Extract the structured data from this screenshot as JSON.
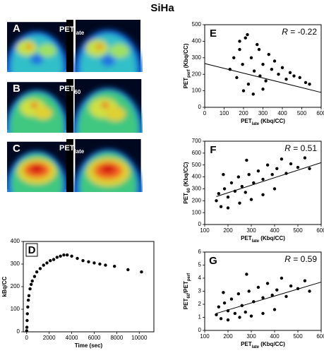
{
  "title": "SiHa",
  "image_panels": [
    {
      "letter": "A",
      "label": [
        {
          "text": "PET"
        },
        {
          "sub": "late"
        }
      ]
    },
    {
      "letter": "B",
      "label": [
        {
          "text": "PET"
        },
        {
          "sub": "60"
        }
      ]
    },
    {
      "letter": "C",
      "label": [
        {
          "text": "PET"
        },
        {
          "sub": "late"
        }
      ]
    }
  ],
  "chart_data": [
    {
      "type": "scatter",
      "panel": "D",
      "x_label": "Time (sec)",
      "y_label": "kBq/CC",
      "x": [
        0,
        20,
        40,
        60,
        100,
        150,
        200,
        300,
        400,
        500,
        700,
        900,
        1200,
        1500,
        1800,
        2100,
        2400,
        2700,
        3000,
        3300,
        3600,
        4000,
        4500,
        5000,
        5500,
        6000,
        6500,
        7000,
        7800,
        9000,
        10200
      ],
      "values": [
        5,
        20,
        50,
        80,
        110,
        140,
        160,
        190,
        210,
        225,
        245,
        265,
        280,
        295,
        305,
        315,
        320,
        330,
        335,
        340,
        340,
        335,
        325,
        315,
        310,
        305,
        300,
        295,
        290,
        275,
        265
      ],
      "xlim": [
        -300,
        11300
      ],
      "ylim": [
        0,
        400
      ],
      "xticks": [
        0,
        2000,
        4000,
        6000,
        8000,
        10000
      ],
      "yticks": [
        0,
        100,
        200,
        300,
        400
      ]
    },
    {
      "type": "scatter",
      "panel": "E",
      "annotation": [
        {
          "text": "R",
          "italic": true
        },
        {
          "text": " = -0.22"
        }
      ],
      "x_label": [
        {
          "text": "PET"
        },
        {
          "sub": "late"
        },
        {
          "text": " (Kbq/CC)"
        }
      ],
      "y_label": [
        {
          "text": "PET"
        },
        {
          "sub": "perf"
        },
        {
          "text": " (Kbq/CC)"
        }
      ],
      "x": [
        130,
        150,
        165,
        180,
        195,
        210,
        225,
        240,
        255,
        270,
        285,
        300,
        315,
        330,
        345,
        360,
        380,
        400,
        420,
        440,
        460,
        490,
        520,
        540,
        200,
        250,
        300,
        180,
        220,
        280
      ],
      "values": [
        230,
        300,
        180,
        350,
        260,
        420,
        140,
        300,
        220,
        380,
        190,
        260,
        160,
        320,
        230,
        280,
        200,
        240,
        170,
        210,
        190,
        180,
        150,
        140,
        100,
        80,
        110,
        400,
        440,
        350
      ],
      "trendline": {
        "x": [
          0,
          600
        ],
        "values": [
          265,
          90
        ]
      },
      "xlim": [
        0,
        600
      ],
      "ylim": [
        0,
        500
      ],
      "xticks": [
        0,
        100,
        200,
        300,
        400,
        500,
        600
      ],
      "yticks": [
        0,
        100,
        200,
        300,
        400,
        500
      ]
    },
    {
      "type": "scatter",
      "panel": "F",
      "annotation": [
        {
          "text": "R",
          "italic": true
        },
        {
          "text": " = 0.51"
        }
      ],
      "x_label": [
        {
          "text": "PET"
        },
        {
          "sub": "late"
        },
        {
          "text": " (Kbq/CC)"
        }
      ],
      "y_label": [
        {
          "text": "PET"
        },
        {
          "sub": "60"
        },
        {
          "text": " (Kbq/CC)"
        }
      ],
      "x": [
        150,
        160,
        170,
        185,
        200,
        215,
        230,
        245,
        260,
        275,
        290,
        310,
        330,
        350,
        370,
        390,
        410,
        430,
        450,
        470,
        500,
        530,
        550,
        200,
        250,
        300,
        350,
        400,
        180,
        280
      ],
      "values": [
        200,
        260,
        150,
        300,
        230,
        350,
        280,
        400,
        320,
        270,
        420,
        350,
        450,
        380,
        500,
        420,
        470,
        550,
        430,
        510,
        480,
        560,
        470,
        140,
        180,
        210,
        250,
        300,
        420,
        540
      ],
      "trendline": {
        "x": [
          150,
          600
        ],
        "values": [
          235,
          520
        ]
      },
      "xlim": [
        100,
        600
      ],
      "ylim": [
        0,
        700
      ],
      "xticks": [
        100,
        200,
        300,
        400,
        500,
        600
      ],
      "yticks": [
        0,
        100,
        200,
        300,
        400,
        500,
        600,
        700
      ]
    },
    {
      "type": "scatter",
      "panel": "G",
      "annotation": [
        {
          "text": "R",
          "italic": true
        },
        {
          "text": " = 0.59"
        }
      ],
      "x_label": [
        {
          "text": "PET"
        },
        {
          "sub": "late"
        },
        {
          "text": " (Kbq/CC)"
        }
      ],
      "y_label": [
        {
          "text": "PET"
        },
        {
          "sub": "60"
        },
        {
          "text": "/PET"
        },
        {
          "sub": "perf"
        }
      ],
      "x": [
        150,
        160,
        170,
        185,
        200,
        215,
        230,
        245,
        260,
        275,
        290,
        310,
        330,
        350,
        370,
        390,
        410,
        430,
        450,
        470,
        500,
        530,
        550,
        200,
        250,
        300,
        350,
        400,
        180,
        280
      ],
      "values": [
        1.2,
        1.8,
        0.9,
        2.1,
        1.5,
        2.4,
        1.3,
        2.8,
        1.9,
        1.4,
        3.0,
        2.2,
        3.3,
        2.5,
        3.6,
        2.7,
        3.1,
        4.0,
        2.6,
        3.4,
        3.2,
        3.8,
        3.0,
        0.8,
        1.0,
        1.1,
        1.3,
        1.6,
        2.9,
        4.3
      ],
      "trendline": {
        "x": [
          150,
          600
        ],
        "values": [
          1.3,
          3.7
        ]
      },
      "xlim": [
        100,
        600
      ],
      "ylim": [
        0,
        6
      ],
      "xticks": [
        100,
        200,
        300,
        400,
        500,
        600
      ],
      "yticks": [
        0,
        1,
        2,
        3,
        4,
        5,
        6
      ]
    }
  ]
}
